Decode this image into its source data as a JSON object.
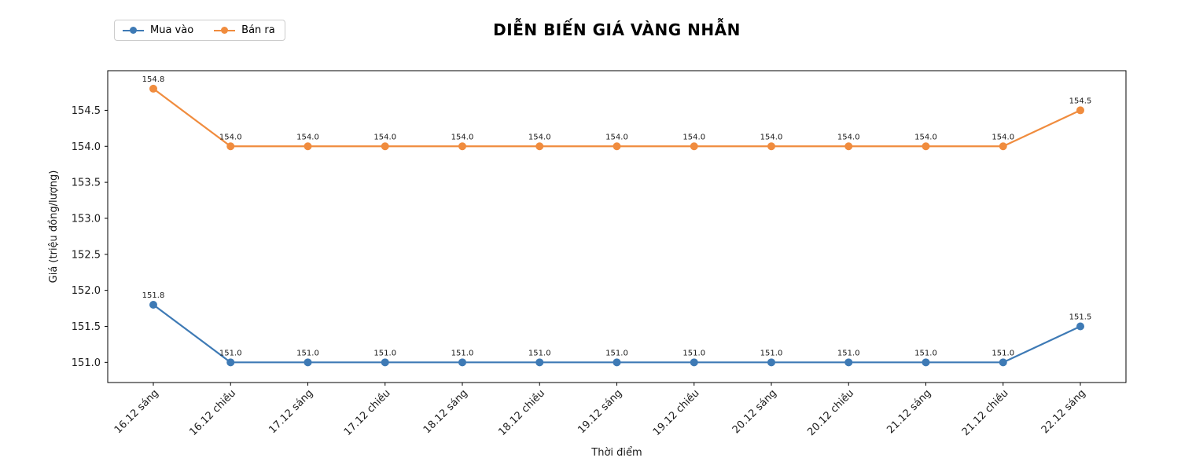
{
  "chart_data": {
    "type": "line",
    "title": "DIỄN BIẾN GIÁ VÀNG NHẪN",
    "xlabel": "Thời điểm",
    "ylabel": "Giá (triệu đồng/lượng)",
    "categories": [
      "16.12 sáng",
      "16.12 chiều",
      "17.12 sáng",
      "17.12 chiều",
      "18.12 sáng",
      "18.12 chiều",
      "19.12 sáng",
      "19.12 chiều",
      "20.12 sáng",
      "20.12 chiều",
      "21.12 sáng",
      "21.12 chiều",
      "22.12 sáng"
    ],
    "series": [
      {
        "name": "Mua vào",
        "color": "#3e7ab5",
        "values": [
          151.8,
          151.0,
          151.0,
          151.0,
          151.0,
          151.0,
          151.0,
          151.0,
          151.0,
          151.0,
          151.0,
          151.0,
          151.5
        ]
      },
      {
        "name": "Bán ra",
        "color": "#f08c3e",
        "values": [
          154.8,
          154.0,
          154.0,
          154.0,
          154.0,
          154.0,
          154.0,
          154.0,
          154.0,
          154.0,
          154.0,
          154.0,
          154.5
        ]
      }
    ],
    "yticks": [
      151.0,
      151.5,
      152.0,
      152.5,
      153.0,
      153.5,
      154.0,
      154.5
    ],
    "ylim": [
      150.72,
      155.05
    ],
    "grid": false,
    "legend_position": "upper-left-outside",
    "point_labels": true,
    "text_color": "#1a1a1a",
    "spine_color": "#000000"
  }
}
